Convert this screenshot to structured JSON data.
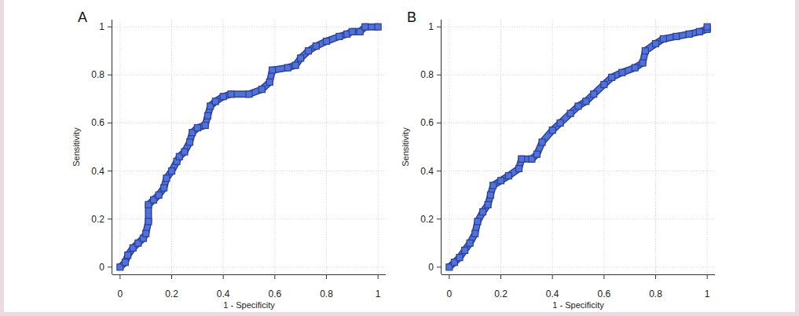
{
  "chart_data": [
    {
      "type": "line",
      "title": "A",
      "x_label": "1 - Specificity",
      "y_label": "Sensitivity",
      "color": "#4f73d9",
      "marker": "square",
      "grid": true,
      "xlim": [
        -0.03,
        1.03
      ],
      "ylim": [
        -0.03,
        1.03
      ],
      "xticks": [
        0,
        0.2,
        0.4,
        0.6,
        0.8,
        1
      ],
      "yticks": [
        0,
        0.2,
        0.4,
        0.6,
        0.8,
        1
      ],
      "x": [
        0,
        0.02,
        0.03,
        0.05,
        0.07,
        0.09,
        0.1,
        0.11,
        0.11,
        0.13,
        0.15,
        0.17,
        0.18,
        0.2,
        0.22,
        0.23,
        0.25,
        0.27,
        0.28,
        0.3,
        0.33,
        0.34,
        0.35,
        0.37,
        0.4,
        0.43,
        0.5,
        0.55,
        0.58,
        0.59,
        0.65,
        0.68,
        0.7,
        0.73,
        0.76,
        0.8,
        0.85,
        0.88,
        0.9,
        0.93,
        0.95,
        1
      ],
      "values": [
        0,
        0.02,
        0.05,
        0.08,
        0.1,
        0.12,
        0.14,
        0.19,
        0.26,
        0.28,
        0.3,
        0.33,
        0.37,
        0.4,
        0.44,
        0.46,
        0.48,
        0.52,
        0.56,
        0.58,
        0.59,
        0.63,
        0.67,
        0.69,
        0.71,
        0.72,
        0.72,
        0.74,
        0.77,
        0.82,
        0.83,
        0.84,
        0.87,
        0.9,
        0.92,
        0.94,
        0.96,
        0.97,
        0.98,
        0.98,
        1,
        1
      ]
    },
    {
      "type": "line",
      "title": "B",
      "x_label": "1 - Specificity",
      "y_label": "Sensitivity",
      "color": "#4f73d9",
      "marker": "square",
      "grid": true,
      "xlim": [
        -0.03,
        1.03
      ],
      "ylim": [
        -0.03,
        1.03
      ],
      "xticks": [
        0,
        0.2,
        0.4,
        0.6,
        0.8,
        1
      ],
      "yticks": [
        0,
        0.2,
        0.4,
        0.6,
        0.8,
        1
      ],
      "x": [
        0,
        0.02,
        0.04,
        0.06,
        0.08,
        0.1,
        0.11,
        0.13,
        0.15,
        0.16,
        0.17,
        0.2,
        0.23,
        0.27,
        0.28,
        0.32,
        0.34,
        0.36,
        0.4,
        0.43,
        0.47,
        0.5,
        0.53,
        0.56,
        0.6,
        0.63,
        0.67,
        0.72,
        0.75,
        0.76,
        0.8,
        0.83,
        0.88,
        0.93,
        0.97,
        1,
        1
      ],
      "values": [
        0,
        0.02,
        0.04,
        0.07,
        0.1,
        0.14,
        0.19,
        0.23,
        0.26,
        0.3,
        0.34,
        0.36,
        0.38,
        0.41,
        0.45,
        0.45,
        0.47,
        0.52,
        0.57,
        0.6,
        0.64,
        0.67,
        0.69,
        0.72,
        0.76,
        0.79,
        0.81,
        0.83,
        0.85,
        0.9,
        0.93,
        0.95,
        0.96,
        0.97,
        0.98,
        0.99,
        1
      ]
    }
  ]
}
